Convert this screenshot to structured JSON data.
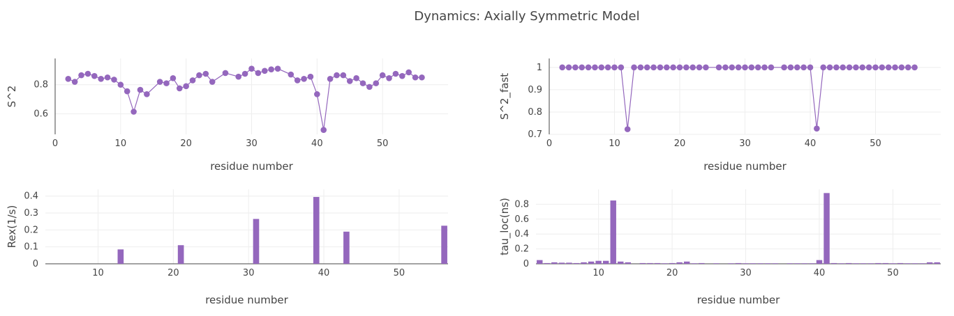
{
  "figure_title": "Dynamics: Axially Symmetric Model",
  "colors": {
    "series": "#9467bd",
    "grid": "#eeeeee",
    "text": "#444444"
  },
  "chart_data": [
    {
      "type": "line",
      "mode": "lines+markers",
      "xlabel": "residue number",
      "ylabel": "S^2",
      "xlim": [
        0,
        60
      ],
      "ylim": [
        0.46,
        0.98
      ],
      "xticks": [
        0,
        10,
        20,
        30,
        40,
        50
      ],
      "yticks": [
        0.6,
        0.8
      ],
      "x": [
        2,
        3,
        4,
        5,
        6,
        7,
        8,
        9,
        10,
        11,
        12,
        13,
        14,
        16,
        17,
        18,
        19,
        20,
        21,
        22,
        23,
        24,
        26,
        28,
        29,
        30,
        31,
        32,
        33,
        34,
        36,
        37,
        38,
        39,
        40,
        41,
        42,
        43,
        44,
        45,
        46,
        47,
        48,
        49,
        50,
        51,
        52,
        53,
        54,
        55,
        56
      ],
      "y": [
        0.84,
        0.82,
        0.865,
        0.875,
        0.86,
        0.84,
        0.85,
        0.835,
        0.8,
        0.755,
        0.615,
        0.765,
        0.735,
        0.82,
        0.81,
        0.845,
        0.775,
        0.79,
        0.83,
        0.865,
        0.875,
        0.82,
        0.88,
        0.855,
        0.875,
        0.91,
        0.88,
        0.895,
        0.905,
        0.91,
        0.87,
        0.83,
        0.84,
        0.855,
        0.735,
        0.49,
        0.84,
        0.865,
        0.865,
        0.825,
        0.845,
        0.81,
        0.785,
        0.81,
        0.865,
        0.845,
        0.875,
        0.86,
        0.885,
        0.85,
        0.85
      ]
    },
    {
      "type": "line",
      "mode": "lines+markers",
      "xlabel": "residue number",
      "ylabel": "S^2_fast",
      "xlim": [
        0,
        60
      ],
      "ylim": [
        0.7,
        1.04
      ],
      "xticks": [
        0,
        10,
        20,
        30,
        40,
        50
      ],
      "yticks": [
        0.7,
        0.8,
        0.9,
        1
      ],
      "x": [
        2,
        3,
        4,
        5,
        6,
        7,
        8,
        9,
        10,
        11,
        12,
        13,
        14,
        15,
        16,
        17,
        18,
        19,
        20,
        21,
        22,
        23,
        24,
        26,
        27,
        28,
        29,
        30,
        31,
        32,
        33,
        34,
        36,
        37,
        38,
        39,
        40,
        41,
        42,
        43,
        44,
        45,
        46,
        47,
        48,
        49,
        50,
        51,
        52,
        53,
        54,
        55,
        56
      ],
      "y": [
        1,
        1,
        1,
        1,
        1,
        1,
        1,
        1,
        1,
        1,
        0.723,
        1,
        1,
        1,
        1,
        1,
        1,
        1,
        1,
        1,
        1,
        1,
        1,
        1,
        1,
        1,
        1,
        1,
        1,
        1,
        1,
        1,
        1,
        1,
        1,
        1,
        1,
        0.726,
        1,
        1,
        1,
        1,
        1,
        1,
        1,
        1,
        1,
        1,
        1,
        1,
        1,
        1,
        1
      ]
    },
    {
      "type": "bar",
      "xlabel": "residue number",
      "ylabel": "Rex(1/s)",
      "xlim": [
        3,
        56.5
      ],
      "ylim": [
        0,
        0.44
      ],
      "xticks": [
        10,
        20,
        30,
        40,
        50
      ],
      "yticks": [
        0,
        0.1,
        0.2,
        0.3,
        0.4
      ],
      "x": [
        13,
        21,
        31,
        39,
        43,
        56
      ],
      "values": [
        0.085,
        0.11,
        0.265,
        0.395,
        0.19,
        0.225
      ]
    },
    {
      "type": "bar",
      "xlabel": "residue number",
      "ylabel": "tau_loc(ns)",
      "xlim": [
        1.5,
        56.5
      ],
      "ylim": [
        0,
        1.0
      ],
      "xticks": [
        10,
        20,
        30,
        40,
        50
      ],
      "yticks": [
        0,
        0.2,
        0.4,
        0.6,
        0.8
      ],
      "x": [
        2,
        3,
        4,
        5,
        6,
        7,
        8,
        9,
        10,
        11,
        12,
        13,
        14,
        16,
        17,
        18,
        19,
        20,
        21,
        22,
        23,
        24,
        26,
        28,
        29,
        30,
        31,
        32,
        33,
        34,
        36,
        37,
        38,
        39,
        40,
        41,
        42,
        43,
        44,
        45,
        46,
        47,
        48,
        49,
        50,
        51,
        52,
        53,
        54,
        55,
        56
      ],
      "values": [
        0.05,
        0.01,
        0.02,
        0.015,
        0.015,
        0.01,
        0.02,
        0.03,
        0.04,
        0.04,
        0.85,
        0.03,
        0.02,
        0.01,
        0.01,
        0.01,
        0.005,
        0.01,
        0.02,
        0.03,
        0.005,
        0.01,
        0.003,
        0.003,
        0.01,
        0.003,
        0.003,
        0.003,
        0.003,
        0.003,
        0.003,
        0.005,
        0.005,
        0.005,
        0.05,
        0.95,
        0.01,
        0.005,
        0.01,
        0.003,
        0.003,
        0.005,
        0.01,
        0.01,
        0.005,
        0.01,
        0.005,
        0.003,
        0.003,
        0.02,
        0.02
      ]
    }
  ]
}
